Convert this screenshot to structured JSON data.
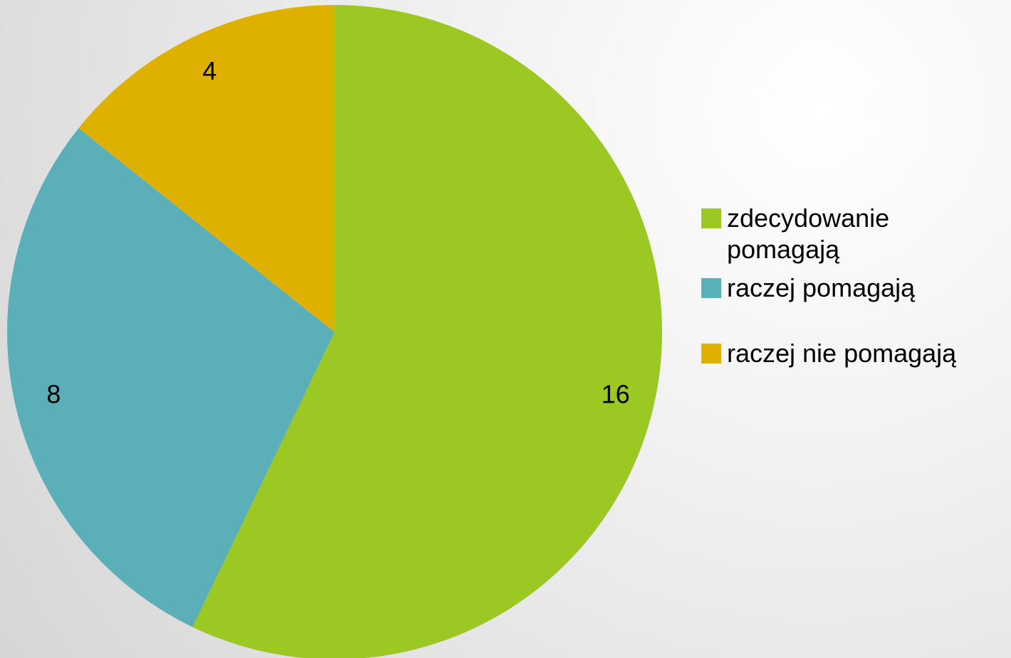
{
  "chart_data": {
    "type": "pie",
    "categories": [
      "zdecydowanie pomagają",
      "raczej pomagają",
      "raczej nie pomagają"
    ],
    "values": [
      16,
      8,
      4
    ],
    "colors": [
      "#9bc823",
      "#5aafb8",
      "#deb000"
    ]
  }
}
